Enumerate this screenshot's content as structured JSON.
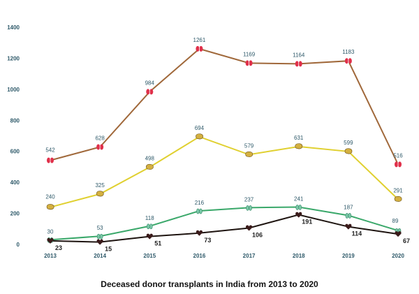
{
  "chart_data": {
    "type": "line",
    "title": "Deceased donor transplants in India from 2013 to 2020",
    "xlabel": "",
    "ylabel": "",
    "categories": [
      "2013",
      "2014",
      "2015",
      "2016",
      "2017",
      "2018",
      "2019",
      "2020"
    ],
    "y_ticks": [
      "0",
      "200",
      "400",
      "600",
      "800",
      "1000",
      "1200",
      "1400"
    ],
    "ylim": [
      0,
      1400
    ],
    "grid": false,
    "legend": "none",
    "series": [
      {
        "values": [
          542,
          628,
          984,
          1261,
          1169,
          1164,
          1183,
          516
        ],
        "color": "#a0683a",
        "marker": "kidney-icon",
        "marker_color": "#e0304a",
        "label_color": "#2f5a6a"
      },
      {
        "values": [
          240,
          325,
          498,
          694,
          579,
          631,
          599,
          291
        ],
        "color": "#e0d030",
        "marker": "liver-icon",
        "marker_color": "#d4b040",
        "label_color": "#2f5a6a"
      },
      {
        "values": [
          30,
          53,
          118,
          216,
          237,
          241,
          187,
          89
        ],
        "color": "#3aa86a",
        "marker": "lung-icon",
        "marker_color": "#7ac8a8",
        "label_color": "#2f5a6a"
      },
      {
        "values": [
          23,
          15,
          51,
          73,
          106,
          191,
          114,
          67
        ],
        "color": "#1e1410",
        "marker": "heart-icon",
        "marker_color": "#3a1a1a",
        "label_color": "#222222"
      }
    ],
    "axis_color": "#2f5a6a"
  }
}
